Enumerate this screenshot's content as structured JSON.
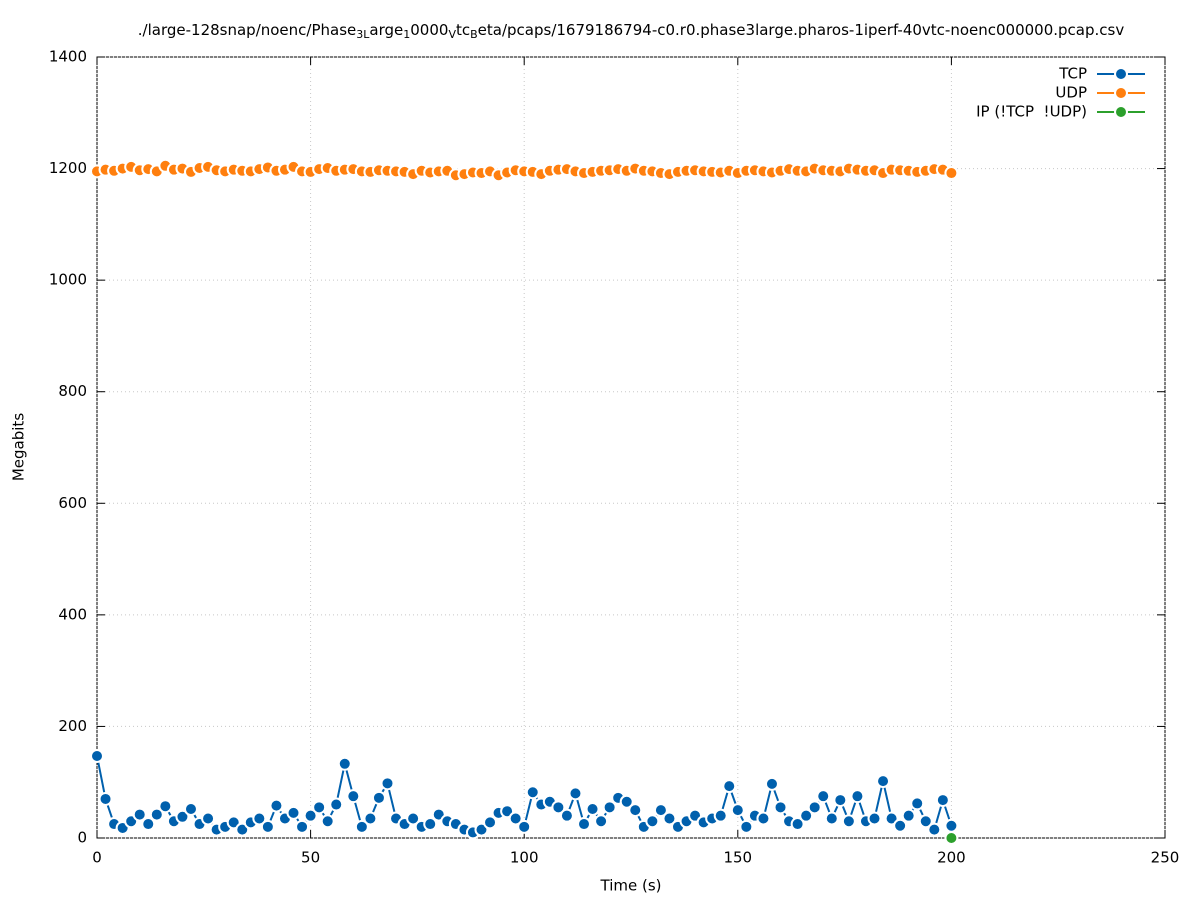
{
  "chart_data": {
    "type": "line",
    "title_parts": [
      {
        "text": "./large-128snap/noenc/Phase"
      },
      {
        "text": "3L",
        "subscript": true
      },
      {
        "text": "arge"
      },
      {
        "text": "1",
        "subscript": true
      },
      {
        "text": "0000"
      },
      {
        "text": "V",
        "subscript": true
      },
      {
        "text": "tc"
      },
      {
        "text": "B",
        "subscript": true
      },
      {
        "text": "eta/pcaps/1679186794-c0.r0.phase3large.pharos-1iperf-40vtc-noenc000000.pcap.csv"
      }
    ],
    "x_label": "Time (s)",
    "y_label": "Megabits",
    "xlim": [
      0,
      250
    ],
    "xticks": [
      0,
      50,
      100,
      150,
      200,
      250
    ],
    "ylim": [
      0,
      1400
    ],
    "yticks": [
      0,
      200,
      400,
      600,
      800,
      1000,
      1200,
      1400
    ],
    "grid": true,
    "legend": "top-right",
    "series": [
      {
        "name": "TCP",
        "color": "#0060ad",
        "x": [
          0,
          2,
          4,
          6,
          8,
          10,
          12,
          14,
          16,
          18,
          20,
          22,
          24,
          26,
          28,
          30,
          32,
          34,
          36,
          38,
          40,
          42,
          44,
          46,
          48,
          50,
          52,
          54,
          56,
          58,
          60,
          62,
          64,
          66,
          68,
          70,
          72,
          74,
          76,
          78,
          80,
          82,
          84,
          86,
          88,
          90,
          92,
          94,
          96,
          98,
          100,
          102,
          104,
          106,
          108,
          110,
          112,
          114,
          116,
          118,
          120,
          122,
          124,
          126,
          128,
          130,
          132,
          134,
          136,
          138,
          140,
          142,
          144,
          146,
          148,
          150,
          152,
          154,
          156,
          158,
          160,
          162,
          164,
          166,
          168,
          170,
          172,
          174,
          176,
          178,
          180,
          182,
          184,
          186,
          188,
          190,
          192,
          194,
          196,
          198,
          200
        ],
        "values": [
          147,
          70,
          25,
          18,
          30,
          42,
          25,
          42,
          57,
          30,
          38,
          52,
          25,
          35,
          15,
          20,
          28,
          15,
          28,
          35,
          20,
          58,
          35,
          45,
          20,
          40,
          55,
          30,
          60,
          133,
          75,
          20,
          35,
          72,
          98,
          35,
          25,
          35,
          20,
          25,
          42,
          30,
          25,
          15,
          10,
          15,
          28,
          45,
          48,
          35,
          20,
          82,
          60,
          65,
          55,
          40,
          80,
          25,
          52,
          30,
          55,
          72,
          65,
          50,
          20,
          30,
          50,
          35,
          20,
          30,
          40,
          28,
          35,
          40,
          93,
          50,
          20,
          40,
          35,
          97,
          55,
          30,
          25,
          40,
          55,
          75,
          35,
          68,
          30,
          75,
          30,
          35,
          102,
          35,
          22,
          40,
          62,
          30,
          15,
          68,
          22
        ]
      },
      {
        "name": "UDP",
        "color": "#ff7f0e",
        "x": [
          0,
          2,
          4,
          6,
          8,
          10,
          12,
          14,
          16,
          18,
          20,
          22,
          24,
          26,
          28,
          30,
          32,
          34,
          36,
          38,
          40,
          42,
          44,
          46,
          48,
          50,
          52,
          54,
          56,
          58,
          60,
          62,
          64,
          66,
          68,
          70,
          72,
          74,
          76,
          78,
          80,
          82,
          84,
          86,
          88,
          90,
          92,
          94,
          96,
          98,
          100,
          102,
          104,
          106,
          108,
          110,
          112,
          114,
          116,
          118,
          120,
          122,
          124,
          126,
          128,
          130,
          132,
          134,
          136,
          138,
          140,
          142,
          144,
          146,
          148,
          150,
          152,
          154,
          156,
          158,
          160,
          162,
          164,
          166,
          168,
          170,
          172,
          174,
          176,
          178,
          180,
          182,
          184,
          186,
          188,
          190,
          192,
          194,
          196,
          198,
          200
        ],
        "values": [
          1195,
          1198,
          1196,
          1200,
          1203,
          1197,
          1199,
          1195,
          1205,
          1198,
          1200,
          1194,
          1201,
          1203,
          1197,
          1195,
          1198,
          1196,
          1195,
          1199,
          1202,
          1196,
          1198,
          1203,
          1195,
          1194,
          1199,
          1201,
          1196,
          1198,
          1199,
          1195,
          1194,
          1197,
          1196,
          1195,
          1194,
          1190,
          1196,
          1193,
          1195,
          1196,
          1188,
          1190,
          1193,
          1192,
          1195,
          1188,
          1193,
          1197,
          1195,
          1194,
          1190,
          1196,
          1198,
          1199,
          1195,
          1192,
          1194,
          1196,
          1197,
          1199,
          1196,
          1200,
          1196,
          1195,
          1192,
          1190,
          1194,
          1196,
          1197,
          1195,
          1194,
          1193,
          1196,
          1192,
          1196,
          1197,
          1195,
          1193,
          1196,
          1199,
          1196,
          1195,
          1200,
          1197,
          1196,
          1195,
          1200,
          1198,
          1196,
          1197,
          1192,
          1198,
          1197,
          1196,
          1194,
          1196,
          1199,
          1198,
          1192
        ]
      },
      {
        "name": "IP (!TCP  !UDP)",
        "color": "#2ca02c",
        "x": [
          200
        ],
        "values": [
          0
        ]
      }
    ]
  }
}
